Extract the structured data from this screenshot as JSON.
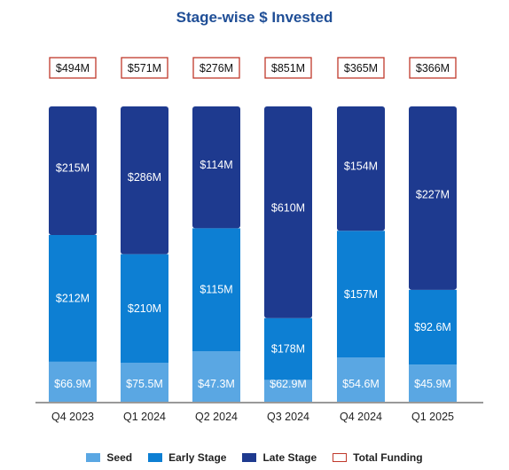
{
  "chart_data": {
    "type": "bar",
    "stacked": true,
    "title": "Stage-wise $ Invested",
    "categories": [
      "Q4 2023",
      "Q1 2024",
      "Q2 2024",
      "Q3 2024",
      "Q4 2024",
      "Q1 2025"
    ],
    "series": [
      {
        "name": "Seed",
        "color": "#5aa7e3",
        "values": [
          66.9,
          75.5,
          47.3,
          62.9,
          54.6,
          45.9
        ],
        "labels": [
          "$66.9M",
          "$75.5M",
          "$47.3M",
          "$62.9M",
          "$54.6M",
          "$45.9M"
        ]
      },
      {
        "name": "Early Stage",
        "color": "#0d7fd3",
        "values": [
          212,
          210,
          115,
          178,
          157,
          92.6
        ],
        "labels": [
          "$212M",
          "$210M",
          "$115M",
          "$178M",
          "$157M",
          "$92.6M"
        ]
      },
      {
        "name": "Late Stage",
        "color": "#1e3a8f",
        "values": [
          215,
          286,
          114,
          610,
          154,
          227
        ],
        "labels": [
          "$215M",
          "$286M",
          "$114M",
          "$610M",
          "$154M",
          "$227M"
        ]
      }
    ],
    "totals": {
      "name": "Total Funding",
      "border_color": "#c0392b",
      "values": [
        494,
        571,
        276,
        851,
        365,
        366
      ],
      "labels": [
        "$494M",
        "$571M",
        "$276M",
        "$851M",
        "$365M",
        "$366M"
      ]
    },
    "grid": false,
    "legend_position": "bottom-center"
  }
}
